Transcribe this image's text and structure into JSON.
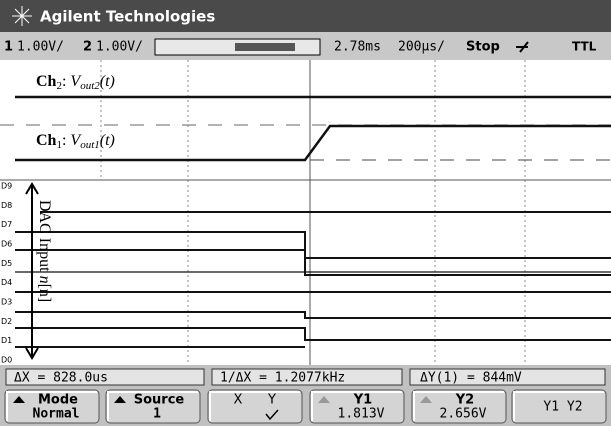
{
  "header": {
    "brand": "Agilent Technologies"
  },
  "status": {
    "ch1_num": "1",
    "ch1_scale": "1.00V/",
    "ch2_num": "2",
    "ch2_scale": "1.00V/",
    "delay": "2.78ms",
    "timebase": "200µs/",
    "run_state": "Stop",
    "trigger_level": "TTL"
  },
  "traces": {
    "ch2": {
      "name": "Ch",
      "sub": "2",
      "sep": ": ",
      "signal": "V",
      "signal_sub": "out2",
      "signal_tail": "(t)"
    },
    "ch1": {
      "name": "Ch",
      "sub": "1",
      "sep": ": ",
      "signal": "V",
      "signal_sub": "out1",
      "signal_tail": "(t)"
    }
  },
  "digital": {
    "axis_label": "DAC Input ",
    "axis_var": "n",
    "axis_tail": "[n]",
    "channels": [
      "D9",
      "D8",
      "D7",
      "D6",
      "D5",
      "D4",
      "D3",
      "D2",
      "D1",
      "D0"
    ]
  },
  "measurements": {
    "delta_x": "ΔX = 828.0us",
    "inv_delta_x": "1/ΔX = 1.2077kHz",
    "delta_y": "ΔY(1) = 844mV"
  },
  "softkeys": [
    {
      "label": "Mode",
      "value": "Normal"
    },
    {
      "label": "Source",
      "value": "1"
    },
    {
      "label": "X",
      "value": "Y"
    },
    {
      "label": "Y1",
      "value": "1.813V"
    },
    {
      "label": "Y2",
      "value": "2.656V"
    },
    {
      "label": "Y1 Y2"
    }
  ]
}
